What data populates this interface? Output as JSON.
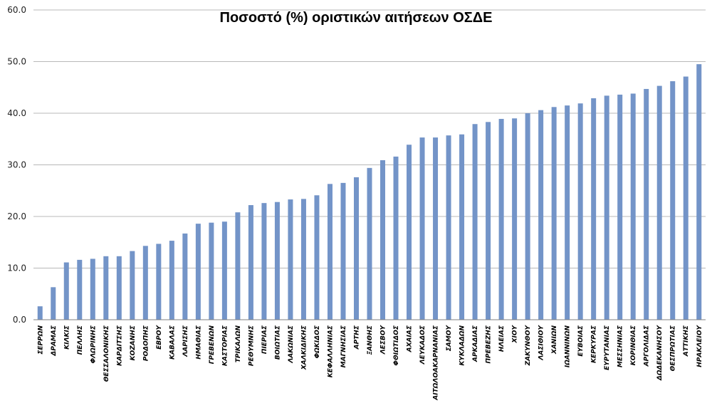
{
  "chart_data": {
    "type": "bar",
    "title": "Ποσοστό (%) οριστικών αιτήσεων ΟΣΔΕ",
    "xlabel": "",
    "ylabel": "",
    "ylim": [
      0,
      60
    ],
    "yticks": [
      "0.0",
      "10.0",
      "20.0",
      "30.0",
      "40.0",
      "50.0",
      "60.0"
    ],
    "grid": true,
    "bar_color": "#7394c8",
    "categories": [
      "ΣΕΡΡΩΝ",
      "ΔΡΑΜΑΣ",
      "ΚΙΛΚΙΣ",
      "ΠΕΛΛΗΣ",
      "ΦΛΩΡΙΝΗΣ",
      "ΘΕΣΣΑΛΟΝΙΚΗΣ",
      "ΚΑΡΔΙΤΣΗΣ",
      "ΚΟΖΑΝΗΣ",
      "ΡΟΔΟΠΗΣ",
      "ΕΒΡΟΥ",
      "ΚΑΒΑΛΑΣ",
      "ΛΑΡΙΣΗΣ",
      "ΗΜΑΘΙΑΣ",
      "ΓΡΕΒΕΝΩΝ",
      "ΚΑΣΤΟΡΙΑΣ",
      "ΤΡΙΚΑΛΩΝ",
      "ΡΕΘΥΜΝΗΣ",
      "ΠΙΕΡΙΑΣ",
      "ΒΟΙΩΤΙΑΣ",
      "ΛΑΚΩΝΙΑΣ",
      "ΧΑΛΚΙΔΙΚΗΣ",
      "ΦΩΚΙΔΟΣ",
      "ΚΕΦΑΛΛΗΝΙΑΣ",
      "ΜΑΓΝΗΣΙΑΣ",
      "ΑΡΤΗΣ",
      "ΞΑΝΘΗΣ",
      "ΛΕΣΒΟΥ",
      "ΦΘΙΩΤΙΔΟΣ",
      "ΑΧΑΙΑΣ",
      "ΛΕΥΚΑΔΟΣ",
      "ΑΙΤΩΛΟΑΚΑΡΝΑΝΙΑΣ",
      "ΣΑΜΟΥ",
      "ΚΥΚΛΑΔΩΝ",
      "ΑΡΚΑΔΙΑΣ",
      "ΠΡΕΒΕΖΗΣ",
      "ΗΛΕΙΑΣ",
      "ΧΙΟΥ",
      "ΖΑΚΥΝΘΟΥ",
      "ΛΑΣΙΘΙΟΥ",
      "ΧΑΝΙΩΝ",
      "ΙΩΑΝΝΙΝΩΝ",
      "ΕΥΒΟΙΑΣ",
      "ΚΕΡΚΥΡΑΣ",
      "ΕΥΡΥΤΑΝΙΑΣ",
      "ΜΕΣΣΗΝΙΑΣ",
      "ΚΟΡΙΝΘΙΑΣ",
      "ΑΡΓΟΛΙΔΑΣ",
      "ΔΩΔΕΚΑΝΗΣΟΥ",
      "ΘΕΣΠΡΩΤΙΑΣ",
      "ΑΤΤΙΚΗΣ",
      "ΗΡΑΚΛΕΙΟΥ"
    ],
    "values": [
      2.6,
      6.3,
      11.1,
      11.6,
      11.8,
      12.3,
      12.3,
      13.3,
      14.3,
      14.7,
      15.3,
      16.7,
      18.6,
      18.8,
      19.0,
      20.8,
      22.2,
      22.6,
      22.8,
      23.3,
      23.4,
      24.1,
      26.3,
      26.5,
      27.6,
      29.4,
      30.9,
      31.6,
      33.9,
      35.3,
      35.3,
      35.7,
      35.9,
      37.9,
      38.3,
      38.9,
      39.0,
      40.0,
      40.6,
      41.2,
      41.5,
      41.9,
      42.9,
      43.4,
      43.6,
      43.8,
      44.7,
      45.3,
      46.2,
      47.1,
      49.5
    ]
  }
}
